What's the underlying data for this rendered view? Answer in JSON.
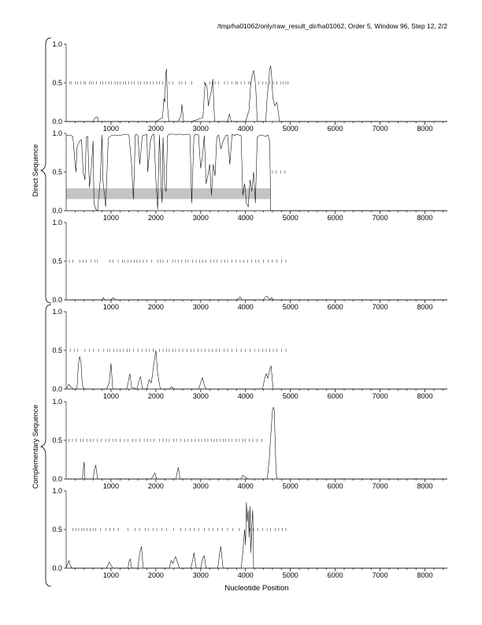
{
  "header": {
    "title": "/tmp/ha01062/only/raw_result_dir/ha01062, Order 5, Window 96, Step 12, 2/2"
  },
  "groups": [
    {
      "label": "Direct Sequence"
    },
    {
      "label": "Complementary Sequence"
    }
  ],
  "chart_data": [
    {
      "type": "line",
      "panel": 1,
      "group": "Direct Sequence",
      "xlabel": "",
      "ylabel": "",
      "xlim": [
        0,
        8500
      ],
      "ylim": [
        0,
        1
      ],
      "x_ticks": [
        1000,
        2000,
        3000,
        4000,
        5000,
        6000,
        7000,
        8000
      ],
      "y_ticks": [
        0.0,
        0.5,
        1.0
      ],
      "x_tick_labels": [
        "1000",
        "2000",
        "3000",
        "4000",
        "5000",
        "6000",
        "7000",
        "8000"
      ],
      "y_tick_labels": [
        "0.0",
        "0.5",
        "1.0"
      ],
      "orf_markers_y": 0.5,
      "orf_markers_x": [
        80,
        120,
        210,
        250,
        330,
        400,
        430,
        520,
        560,
        600,
        680,
        760,
        820,
        880,
        960,
        1010,
        1090,
        1150,
        1200,
        1280,
        1330,
        1400,
        1460,
        1520,
        1600,
        1660,
        1740,
        1800,
        1880,
        1940,
        2020,
        2080,
        2150,
        2300,
        2380,
        2520,
        2580,
        2660,
        2800,
        3080,
        3200,
        3260,
        3320,
        3400,
        3530,
        3600,
        3700,
        3780,
        3820,
        3900,
        3980,
        4060,
        4100,
        4300,
        4380,
        4460,
        4540,
        4620,
        4700,
        4780,
        4840,
        4900,
        4950
      ],
      "series": [
        {
          "x": [
            0,
            600,
            650,
            700,
            720,
            800,
            2000,
            2150,
            2180,
            2200,
            2220,
            2240,
            2260,
            2290,
            2500,
            2560,
            2580,
            2620,
            2800,
            3050,
            3080,
            3100,
            3140,
            3170,
            3200,
            3240,
            3270,
            3310,
            3600,
            3640,
            3680,
            4000,
            4080,
            4110,
            4150,
            4180,
            4210,
            4230,
            4260,
            4300,
            4450,
            4480,
            4520,
            4540,
            4560,
            4580,
            4610,
            4650,
            4700,
            4760,
            8500
          ],
          "y": [
            0.0,
            0.0,
            0.05,
            0.06,
            0.0,
            0.0,
            0.0,
            0.05,
            0.3,
            0.25,
            0.62,
            0.68,
            0.2,
            0.0,
            0.0,
            0.08,
            0.22,
            0.0,
            0.0,
            0.05,
            0.35,
            0.5,
            0.45,
            0.2,
            0.3,
            0.4,
            0.55,
            0.0,
            0.0,
            0.1,
            0.0,
            0.0,
            0.15,
            0.45,
            0.6,
            0.66,
            0.55,
            0.4,
            0.0,
            0.0,
            0.0,
            0.3,
            0.55,
            0.68,
            0.72,
            0.6,
            0.3,
            0.2,
            0.25,
            0.0,
            0.0
          ]
        }
      ]
    },
    {
      "type": "line",
      "panel": 2,
      "group": "Direct Sequence",
      "xlabel": "",
      "ylabel": "",
      "xlim": [
        0,
        8500
      ],
      "ylim": [
        0,
        1
      ],
      "x_ticks": [
        1000,
        2000,
        3000,
        4000,
        5000,
        6000,
        7000,
        8000
      ],
      "y_ticks": [
        0.0,
        0.5,
        1.0
      ],
      "x_tick_labels": [
        "1000",
        "2000",
        "3000",
        "4000",
        "5000",
        "6000",
        "7000",
        "8000"
      ],
      "y_tick_labels": [
        "0.0",
        "0.5",
        "1.0"
      ],
      "highlight_band": {
        "x": [
          0,
          4550
        ],
        "y": [
          0.15,
          0.29
        ]
      },
      "orf_markers_y": 0.5,
      "orf_markers_x": [
        4600,
        4680,
        4780,
        4880
      ],
      "series": [
        {
          "x": [
            0,
            80,
            150,
            200,
            220,
            240,
            260,
            300,
            340,
            380,
            420,
            450,
            480,
            520,
            560,
            600,
            620,
            660,
            700,
            760,
            800,
            820,
            880,
            940,
            1000,
            1100,
            1200,
            1300,
            1400,
            1460,
            1500,
            1520,
            1540,
            1560,
            1600,
            1640,
            1700,
            1760,
            1800,
            1820,
            1880,
            1920,
            1960,
            2000,
            2040,
            2080,
            2120,
            2140,
            2160,
            2200,
            2230,
            2260,
            2300,
            2340,
            2400,
            2450,
            2500,
            2550,
            2600,
            2700,
            2760,
            2800,
            2850,
            2900,
            2950,
            3000,
            3040,
            3080,
            3120,
            3160,
            3200,
            3240,
            3280,
            3320,
            3360,
            3400,
            3450,
            3500,
            3560,
            3600,
            3650,
            3700,
            3750,
            3800,
            3850,
            3900,
            3940,
            3980,
            4020,
            4060,
            4100,
            4140,
            4180,
            4220,
            4260,
            4300,
            4350,
            4400,
            4450,
            4500,
            4540,
            4560,
            8500
          ],
          "y": [
            0.97,
            0.98,
            0.96,
            0.6,
            0.5,
            0.8,
            0.85,
            0.9,
            0.92,
            0.5,
            0.4,
            0.95,
            0.96,
            0.3,
            0.55,
            0.9,
            0.1,
            0.02,
            0.0,
            0.4,
            0.98,
            0.4,
            0.05,
            0.94,
            0.97,
            0.98,
            0.97,
            0.99,
            0.98,
            0.6,
            0.15,
            0.5,
            0.98,
            0.99,
            0.97,
            0.6,
            0.97,
            0.98,
            0.99,
            0.5,
            0.9,
            0.98,
            0.99,
            0.4,
            0.02,
            0.98,
            0.3,
            0.1,
            0.95,
            0.3,
            0.25,
            0.97,
            0.99,
            0.99,
            0.99,
            0.98,
            0.99,
            0.99,
            0.98,
            0.99,
            0.98,
            0.1,
            0.97,
            0.99,
            0.98,
            0.55,
            0.7,
            0.97,
            0.35,
            0.45,
            0.6,
            0.2,
            0.6,
            0.45,
            0.95,
            0.98,
            0.8,
            0.9,
            0.97,
            0.98,
            0.6,
            0.99,
            0.97,
            0.99,
            0.98,
            0.97,
            0.2,
            0.35,
            0.1,
            0.05,
            0.4,
            0.25,
            0.5,
            0.1,
            0.95,
            0.97,
            0.98,
            0.97,
            0.96,
            0.98,
            0.9,
            0.0,
            0.0
          ]
        }
      ]
    },
    {
      "type": "line",
      "panel": 3,
      "group": "Direct Sequence",
      "xlabel": "",
      "ylabel": "",
      "xlim": [
        0,
        8500
      ],
      "ylim": [
        0,
        1
      ],
      "x_ticks": [
        1000,
        2000,
        3000,
        4000,
        5000,
        6000,
        7000,
        8000
      ],
      "y_ticks": [
        0.0,
        0.5,
        1.0
      ],
      "x_tick_labels": [
        "1000",
        "2000",
        "3000",
        "4000",
        "5000",
        "6000",
        "7000",
        "8000"
      ],
      "y_tick_labels": [
        "0.0",
        "0.5",
        "1.0"
      ],
      "orf_markers_y": 0.5,
      "orf_markers_x": [
        70,
        150,
        300,
        380,
        450,
        560,
        640,
        700,
        980,
        1040,
        1160,
        1260,
        1300,
        1380,
        1440,
        1520,
        1580,
        1640,
        1720,
        1800,
        1900,
        2040,
        2100,
        2160,
        2260,
        2380,
        2440,
        2500,
        2580,
        2660,
        2720,
        2820,
        2900,
        2980,
        3050,
        3120,
        3220,
        3300,
        3360,
        3460,
        3540,
        3600,
        3700,
        3780,
        3880,
        3960,
        4050,
        4140,
        4230,
        4300,
        4400,
        4500,
        4600,
        4700,
        4800,
        4900
      ],
      "series": [
        {
          "x": [
            0,
            800,
            830,
            860,
            900,
            1000,
            1050,
            1100,
            3800,
            3850,
            3880,
            3920,
            4000,
            4400,
            4460,
            4500,
            4540,
            4580,
            4620,
            8500
          ],
          "y": [
            0.0,
            0.0,
            0.03,
            0.0,
            0.0,
            0.0,
            0.03,
            0.0,
            0.0,
            0.02,
            0.04,
            0.0,
            0.0,
            0.0,
            0.05,
            0.04,
            0.0,
            0.03,
            0.0,
            0.0
          ]
        }
      ]
    },
    {
      "type": "line",
      "panel": 4,
      "group": "Complementary Sequence",
      "xlabel": "",
      "ylabel": "",
      "xlim": [
        0,
        8500
      ],
      "ylim": [
        0,
        1
      ],
      "x_ticks": [
        1000,
        2000,
        3000,
        4000,
        5000,
        6000,
        7000,
        8000
      ],
      "y_ticks": [
        0.0,
        0.5,
        1.0
      ],
      "x_tick_labels": [
        "1000",
        "2000",
        "3000",
        "4000",
        "5000",
        "6000",
        "7000",
        "8000"
      ],
      "y_tick_labels": [
        "0.0",
        "0.5",
        "1.0"
      ],
      "orf_markers_y": 0.5,
      "orf_markers_x": [
        90,
        180,
        260,
        420,
        520,
        600,
        720,
        840,
        920,
        980,
        1060,
        1140,
        1200,
        1280,
        1360,
        1420,
        1500,
        1600,
        1700,
        1780,
        1860,
        1940,
        2080,
        2160,
        2240,
        2300,
        2380,
        2440,
        2520,
        2600,
        2700,
        2780,
        2860,
        2940,
        3020,
        3100,
        3180,
        3260,
        3340,
        3420,
        3520,
        3600,
        3700,
        3800,
        3900,
        4000,
        4100,
        4200,
        4300,
        4380,
        4460,
        4540,
        4620,
        4700,
        4800,
        4900
      ],
      "series": [
        {
          "x": [
            0,
            60,
            100,
            160,
            240,
            270,
            300,
            330,
            360,
            400,
            900,
            960,
            1000,
            1040,
            1350,
            1380,
            1420,
            1460,
            1580,
            1620,
            1660,
            1700,
            1800,
            1850,
            1900,
            1950,
            2000,
            2040,
            2100,
            2300,
            2350,
            2400,
            2950,
            3000,
            3040,
            3080,
            3120,
            4380,
            4420,
            4460,
            4500,
            4540,
            4570,
            4600,
            4620,
            8500
          ],
          "y": [
            0.0,
            0.06,
            0.03,
            0.0,
            0.0,
            0.3,
            0.42,
            0.35,
            0.05,
            0.0,
            0.0,
            0.08,
            0.33,
            0.0,
            0.0,
            0.08,
            0.2,
            0.02,
            0.0,
            0.1,
            0.16,
            0.0,
            0.0,
            0.12,
            0.08,
            0.3,
            0.5,
            0.2,
            0.0,
            0.0,
            0.03,
            0.0,
            0.0,
            0.08,
            0.15,
            0.05,
            0.0,
            0.0,
            0.12,
            0.2,
            0.14,
            0.25,
            0.3,
            0.1,
            0.0,
            0.0
          ]
        }
      ]
    },
    {
      "type": "line",
      "panel": 5,
      "group": "Complementary Sequence",
      "xlabel": "",
      "ylabel": "",
      "xlim": [
        0,
        8500
      ],
      "ylim": [
        0,
        1
      ],
      "x_ticks": [
        1000,
        2000,
        3000,
        4000,
        5000,
        6000,
        7000,
        8000
      ],
      "y_ticks": [
        0.0,
        0.5,
        1.0
      ],
      "x_tick_labels": [
        "1000",
        "2000",
        "3000",
        "4000",
        "5000",
        "6000",
        "7000",
        "8000"
      ],
      "y_tick_labels": [
        "0.0",
        "0.5",
        "1.0"
      ],
      "orf_markers_y": 0.5,
      "orf_markers_x": [
        60,
        140,
        220,
        320,
        380,
        460,
        540,
        600,
        700,
        780,
        880,
        960,
        1040,
        1120,
        1200,
        1300,
        1380,
        1480,
        1560,
        1640,
        1740,
        1820,
        1880,
        1960,
        2080,
        2160,
        2240,
        2300,
        2400,
        2460,
        2560,
        2640,
        2720,
        2800,
        2880,
        2960,
        3020,
        3100,
        3160,
        3240,
        3300,
        3360,
        3440,
        3500,
        3560,
        3620,
        3700,
        3780,
        3860,
        3940,
        4000,
        4080,
        4160,
        4260,
        4360
      ],
      "series": [
        {
          "x": [
            0,
            360,
            380,
            400,
            420,
            600,
            630,
            660,
            700,
            1900,
            1950,
            1980,
            2020,
            2450,
            2480,
            2500,
            2540,
            3900,
            3940,
            3980,
            4050,
            4480,
            4500,
            4530,
            4560,
            4600,
            4620,
            4640,
            4660,
            4680,
            4700,
            8500
          ],
          "y": [
            0.0,
            0.0,
            0.1,
            0.22,
            0.0,
            0.0,
            0.12,
            0.18,
            0.0,
            0.0,
            0.05,
            0.08,
            0.0,
            0.0,
            0.1,
            0.15,
            0.0,
            0.0,
            0.05,
            0.03,
            0.0,
            0.0,
            0.08,
            0.25,
            0.55,
            0.88,
            0.93,
            0.9,
            0.5,
            0.1,
            0.0,
            0.0
          ]
        }
      ]
    },
    {
      "type": "line",
      "panel": 6,
      "group": "Complementary Sequence",
      "xlabel": "Nucleotide Position",
      "ylabel": "",
      "xlim": [
        0,
        8500
      ],
      "ylim": [
        0,
        1
      ],
      "x_ticks": [
        1000,
        2000,
        3000,
        4000,
        5000,
        6000,
        7000,
        8000
      ],
      "y_ticks": [
        0.0,
        0.5,
        1.0
      ],
      "x_tick_labels": [
        "1000",
        "2000",
        "3000",
        "4000",
        "5000",
        "6000",
        "7000",
        "8000"
      ],
      "y_tick_labels": [
        "0.0",
        "0.5",
        "1.0"
      ],
      "orf_markers_y": 0.5,
      "orf_markers_x": [
        150,
        220,
        280,
        340,
        400,
        460,
        540,
        600,
        660,
        760,
        880,
        980,
        1060,
        1160,
        1380,
        1540,
        1640,
        1760,
        1840,
        1940,
        2020,
        2140,
        2240,
        2400,
        2560,
        2660,
        2760,
        2860,
        2960,
        3080,
        3180,
        3280,
        3380,
        3480,
        3600,
        3720,
        3860,
        4100,
        4180,
        4280,
        4380,
        4480,
        4560,
        4660,
        4740,
        4820,
        4900
      ],
      "series": [
        {
          "x": [
            0,
            60,
            100,
            140,
            900,
            960,
            1000,
            1040,
            1380,
            1400,
            1430,
            1460,
            1600,
            1640,
            1680,
            1700,
            1720,
            2300,
            2340,
            2380,
            2420,
            2440,
            2500,
            2520,
            2780,
            2820,
            2850,
            2900,
            3000,
            3040,
            3080,
            3120,
            3380,
            3420,
            3450,
            3480,
            3500,
            3900,
            3940,
            3980,
            4000,
            4020,
            4040,
            4060,
            4080,
            4100,
            4120,
            4140,
            4160,
            4180,
            8500
          ],
          "y": [
            0.0,
            0.1,
            0.02,
            0.0,
            0.0,
            0.08,
            0.04,
            0.0,
            0.0,
            0.08,
            0.12,
            0.0,
            0.0,
            0.2,
            0.28,
            0.12,
            0.0,
            0.0,
            0.1,
            0.06,
            0.12,
            0.15,
            0.05,
            0.0,
            0.0,
            0.1,
            0.2,
            0.0,
            0.0,
            0.12,
            0.16,
            0.0,
            0.0,
            0.18,
            0.28,
            0.1,
            0.0,
            0.0,
            0.2,
            0.5,
            0.3,
            0.85,
            0.6,
            0.75,
            0.4,
            0.8,
            0.2,
            0.55,
            0.75,
            0.0,
            0.0
          ]
        }
      ]
    }
  ]
}
